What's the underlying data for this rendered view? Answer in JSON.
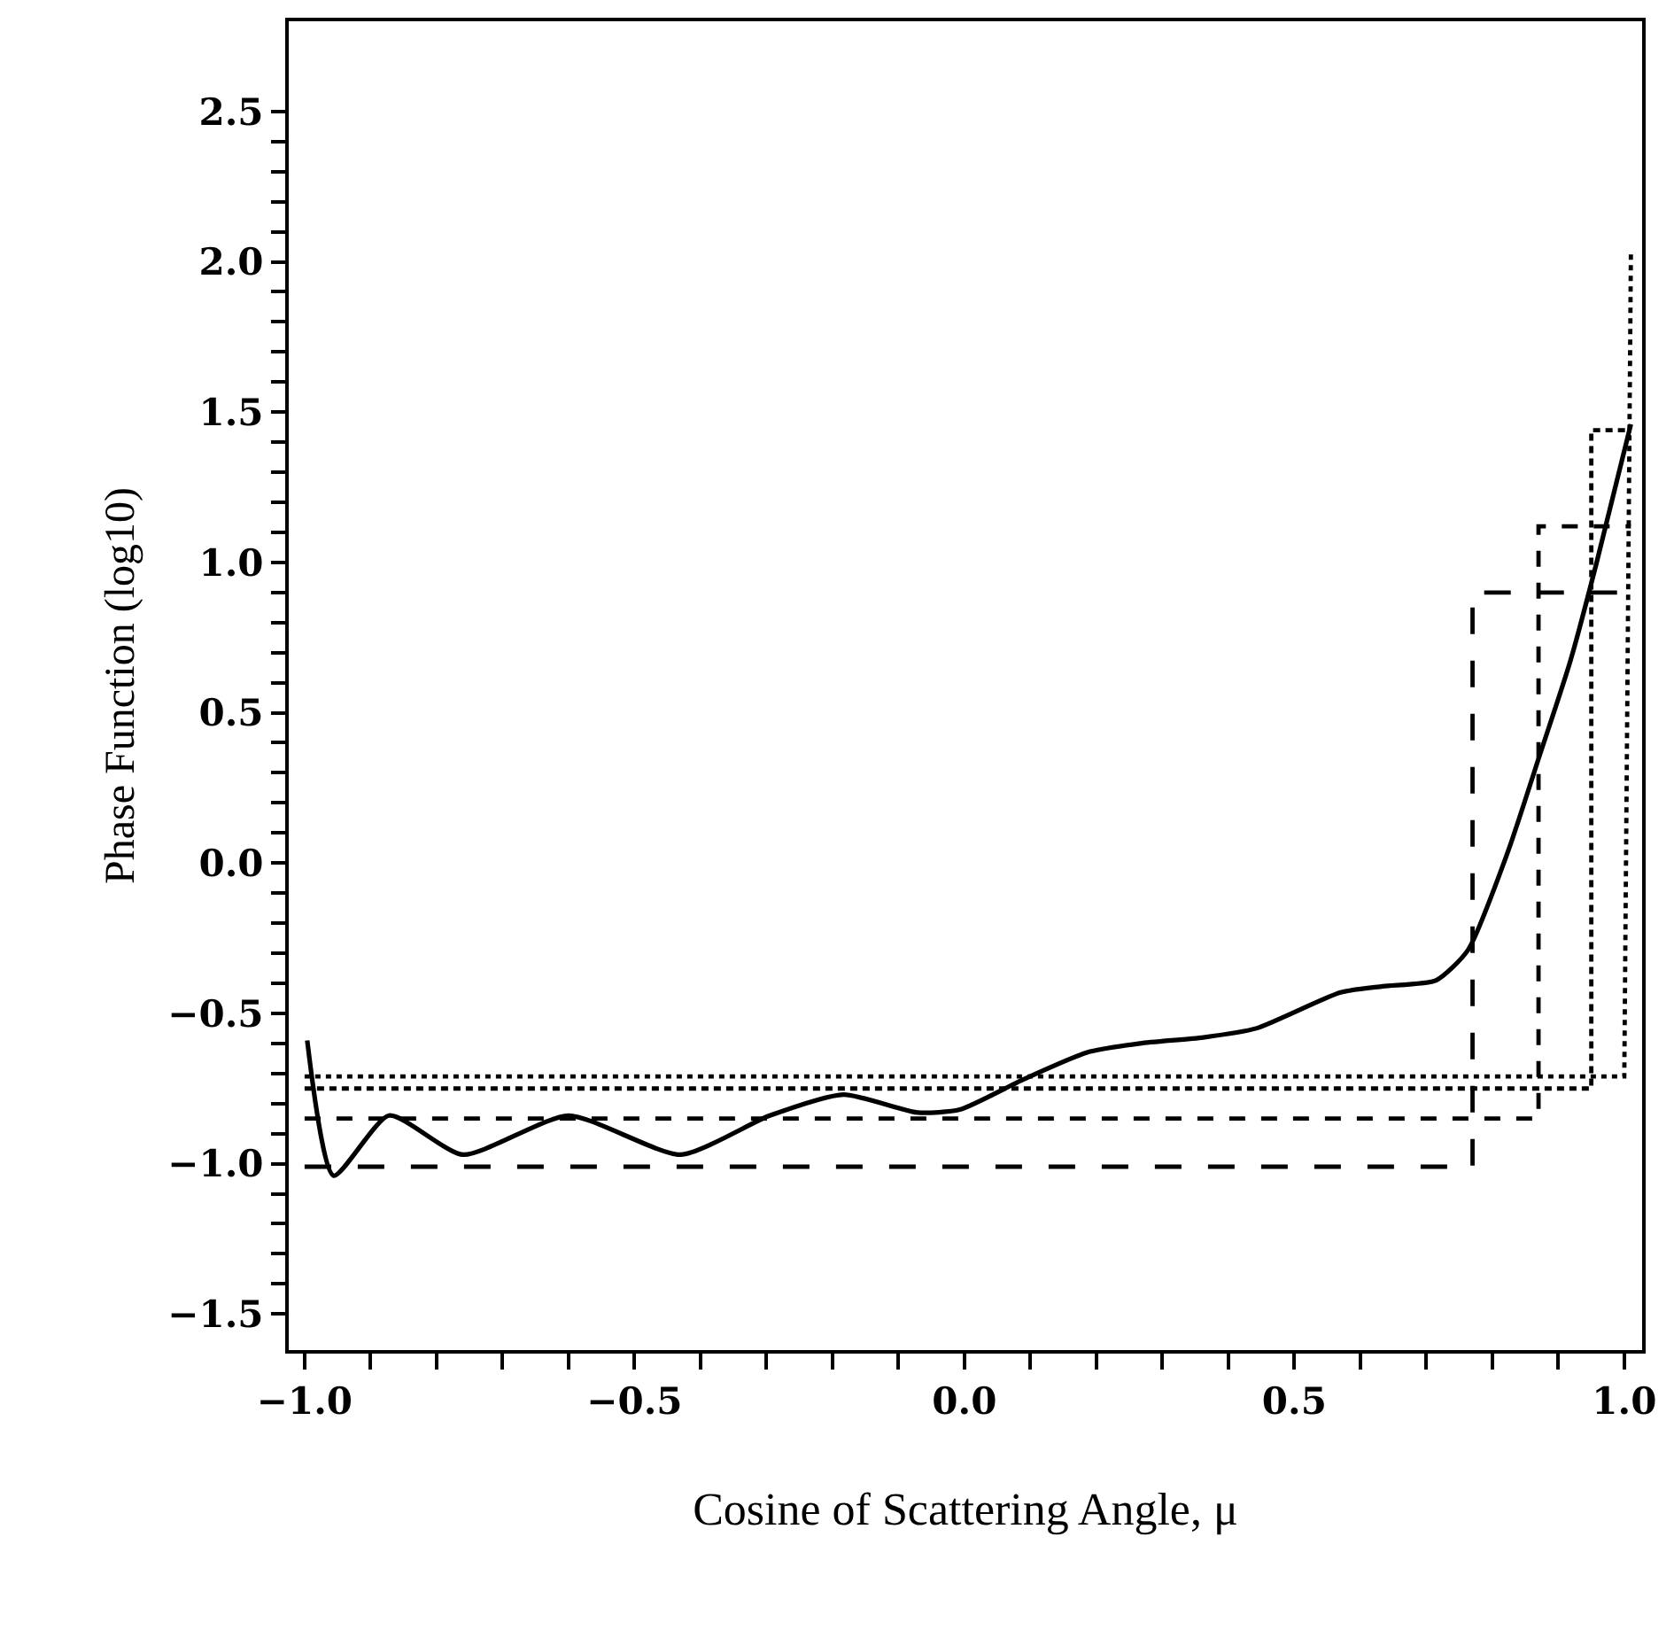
{
  "chart_data": {
    "type": "line",
    "xlabel": "Cosine of Scattering Angle, μ",
    "ylabel": "Phase Function (log10)",
    "xlim": [
      -1.024,
      1.027
    ],
    "ylim": [
      -1.62,
      2.8
    ],
    "xticks": [
      {
        "value": -1.0,
        "label": "−1.0"
      },
      {
        "value": -0.9,
        "label": null
      },
      {
        "value": -0.8,
        "label": null
      },
      {
        "value": -0.7,
        "label": null
      },
      {
        "value": -0.6,
        "label": null
      },
      {
        "value": -0.5,
        "label": "−0.5"
      },
      {
        "value": -0.4,
        "label": null
      },
      {
        "value": -0.3,
        "label": null
      },
      {
        "value": -0.2,
        "label": null
      },
      {
        "value": -0.1,
        "label": null
      },
      {
        "value": 0.0,
        "label": "0.0"
      },
      {
        "value": 0.1,
        "label": null
      },
      {
        "value": 0.2,
        "label": null
      },
      {
        "value": 0.3,
        "label": null
      },
      {
        "value": 0.4,
        "label": null
      },
      {
        "value": 0.5,
        "label": "0.5"
      },
      {
        "value": 0.6,
        "label": null
      },
      {
        "value": 0.7,
        "label": null
      },
      {
        "value": 0.8,
        "label": null
      },
      {
        "value": 0.9,
        "label": null
      },
      {
        "value": 1.0,
        "label": "1.0"
      }
    ],
    "yticks": [
      {
        "value": -1.5,
        "label": "−1.5"
      },
      {
        "value": -1.4,
        "label": null
      },
      {
        "value": -1.3,
        "label": null
      },
      {
        "value": -1.2,
        "label": null
      },
      {
        "value": -1.1,
        "label": null
      },
      {
        "value": -1.0,
        "label": "−1.0"
      },
      {
        "value": -0.9,
        "label": null
      },
      {
        "value": -0.8,
        "label": null
      },
      {
        "value": -0.7,
        "label": null
      },
      {
        "value": -0.6,
        "label": null
      },
      {
        "value": -0.5,
        "label": "−0.5"
      },
      {
        "value": -0.4,
        "label": null
      },
      {
        "value": -0.3,
        "label": null
      },
      {
        "value": -0.2,
        "label": null
      },
      {
        "value": -0.1,
        "label": null
      },
      {
        "value": 0.0,
        "label": "0.0"
      },
      {
        "value": 0.1,
        "label": null
      },
      {
        "value": 0.2,
        "label": null
      },
      {
        "value": 0.3,
        "label": null
      },
      {
        "value": 0.4,
        "label": null
      },
      {
        "value": 0.5,
        "label": "0.5"
      },
      {
        "value": 0.6,
        "label": null
      },
      {
        "value": 0.7,
        "label": null
      },
      {
        "value": 0.8,
        "label": null
      },
      {
        "value": 0.9,
        "label": null
      },
      {
        "value": 1.0,
        "label": "1.0"
      },
      {
        "value": 1.1,
        "label": null
      },
      {
        "value": 1.2,
        "label": null
      },
      {
        "value": 1.3,
        "label": null
      },
      {
        "value": 1.4,
        "label": null
      },
      {
        "value": 1.5,
        "label": "1.5"
      },
      {
        "value": 1.6,
        "label": null
      },
      {
        "value": 1.7,
        "label": null
      },
      {
        "value": 1.8,
        "label": null
      },
      {
        "value": 1.9,
        "label": null
      },
      {
        "value": 2.0,
        "label": "2.0"
      },
      {
        "value": 2.1,
        "label": null
      },
      {
        "value": 2.2,
        "label": null
      },
      {
        "value": 2.3,
        "label": null
      },
      {
        "value": 2.4,
        "label": null
      },
      {
        "value": 2.5,
        "label": "2.5"
      }
    ],
    "marker": "none",
    "series": [
      {
        "color": "#000000",
        "line_style": "solid",
        "x": [
          -0.996,
          -0.956,
          -0.872,
          -0.76,
          -0.6,
          -0.43,
          -0.295,
          -0.183,
          -0.071,
          -0.007,
          0.089,
          0.186,
          0.266,
          0.362,
          0.442,
          0.57,
          0.634,
          0.715,
          0.763,
          0.824,
          0.872,
          0.918,
          0.957,
          1.01
        ],
        "values": [
          -0.59,
          -1.04,
          -0.84,
          -0.97,
          -0.84,
          -0.97,
          -0.84,
          -0.77,
          -0.83,
          -0.82,
          -0.72,
          -0.63,
          -0.6,
          -0.58,
          -0.55,
          -0.43,
          -0.41,
          -0.39,
          -0.29,
          0.04,
          0.36,
          0.67,
          0.99,
          1.46
        ]
      },
      {
        "color": "#000000",
        "line_style": "dashed",
        "x": [
          -1.0,
          0.77,
          0.77,
          1.01
        ],
        "values": [
          -1.01,
          -1.01,
          0.9,
          0.9
        ]
      },
      {
        "color": "#000000",
        "line_style": "dashed",
        "x": [
          -1.0,
          0.87,
          0.87,
          1.01
        ],
        "values": [
          -0.85,
          -0.85,
          1.12,
          1.12
        ]
      },
      {
        "color": "#000000",
        "line_style": "dashed",
        "x": [
          -1.0,
          0.95,
          0.95,
          1.01
        ],
        "values": [
          -0.75,
          -0.75,
          1.44,
          1.44
        ]
      },
      {
        "color": "#000000",
        "line_style": "dotted",
        "x": [
          -1.0,
          1.0,
          1.01
        ],
        "values": [
          -0.71,
          -0.71,
          2.03
        ]
      }
    ]
  }
}
